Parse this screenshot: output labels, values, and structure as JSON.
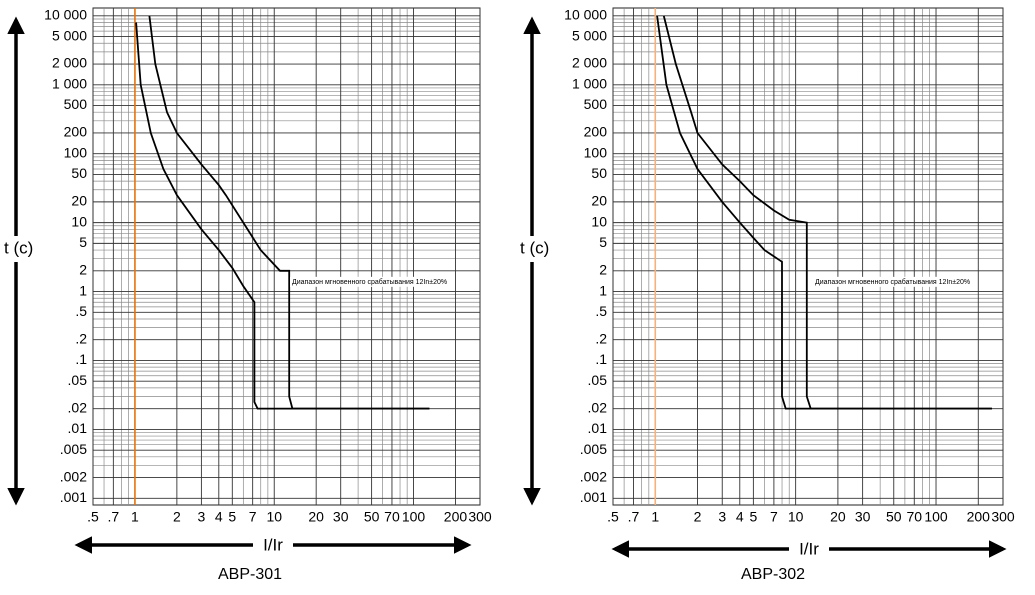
{
  "chart_data": [
    {
      "type": "line",
      "title": "АВР-301",
      "xlabel": "I/Ir",
      "ylabel": "t (c)",
      "annotation": "Диапазон мгновенного срабатывания 12In±20%",
      "xscale": "log",
      "yscale": "log",
      "grid": true,
      "xlim": [
        0.5,
        300
      ],
      "ylim": [
        0.0008,
        13000
      ],
      "xticks": [
        {
          "value": 0.5,
          "label": ".5"
        },
        {
          "value": 0.7,
          "label": ".7"
        },
        1,
        2,
        3,
        4,
        5,
        7,
        10,
        20,
        30,
        50,
        70,
        100,
        200,
        300
      ],
      "yticks": [
        {
          "value": 10000,
          "label": "10 000"
        },
        {
          "value": 5000,
          "label": "5 000"
        },
        {
          "value": 2000,
          "label": "2 000"
        },
        {
          "value": 1000,
          "label": "1 000"
        },
        500,
        200,
        100,
        50,
        20,
        10,
        5,
        2,
        1,
        {
          "value": 0.5,
          "label": ".5"
        },
        {
          "value": 0.2,
          "label": ".2"
        },
        {
          "value": 0.1,
          "label": ".1"
        },
        {
          "value": 0.05,
          "label": ".05"
        },
        {
          "value": 0.02,
          "label": ".02"
        },
        {
          "value": 0.01,
          "label": ".01"
        },
        {
          "value": 0.005,
          "label": ".005"
        },
        {
          "value": 0.002,
          "label": ".002"
        },
        {
          "value": 0.001,
          "label": ".001"
        }
      ],
      "xminor": [
        0.6,
        0.8,
        0.9,
        6,
        8,
        9,
        40,
        60,
        80,
        90
      ],
      "yminor": [
        0.003,
        0.004,
        0.006,
        0.007,
        0.008,
        0.009,
        0.03,
        0.04,
        0.06,
        0.07,
        0.08,
        0.09,
        0.3,
        0.4,
        0.6,
        0.7,
        0.8,
        0.9,
        3,
        4,
        6,
        7,
        8,
        9,
        30,
        40,
        60,
        70,
        80,
        90,
        300,
        400,
        600,
        700,
        800,
        900,
        3000,
        4000,
        6000,
        7000,
        8000,
        9000
      ],
      "vline": 1,
      "vline_color": "#e8730c",
      "series": [
        {
          "color": "#000000",
          "x": [
            1.02,
            1.1,
            1.3,
            1.6,
            2,
            3,
            4,
            5,
            6,
            7.2,
            7.2,
            7.6,
            10,
            130
          ],
          "values": [
            8000,
            1000,
            200,
            60,
            25,
            8,
            4,
            2.2,
            1.2,
            0.7,
            0.025,
            0.02,
            0.02,
            0.02
          ]
        },
        {
          "color": "#000000",
          "x": [
            1.27,
            1.4,
            1.7,
            2,
            3,
            4,
            4.5,
            6,
            8,
            11,
            12.8,
            12.8,
            13.5,
            130
          ],
          "values": [
            10000,
            2000,
            400,
            200,
            70,
            35,
            25,
            10,
            4,
            2,
            2,
            0.03,
            0.02,
            0.02
          ]
        }
      ]
    },
    {
      "type": "line",
      "title": "АВР-302",
      "xlabel": "I/Ir",
      "ylabel": "t (c)",
      "annotation": "Диапазон мгновенного срабатывания 12In±20%",
      "xscale": "log",
      "yscale": "log",
      "grid": true,
      "xlim": [
        0.5,
        300
      ],
      "ylim": [
        0.0008,
        13000
      ],
      "xticks": [
        {
          "value": 0.5,
          "label": ".5"
        },
        {
          "value": 0.7,
          "label": ".7"
        },
        1,
        2,
        3,
        4,
        5,
        7,
        10,
        20,
        30,
        50,
        70,
        100,
        200,
        300
      ],
      "yticks": [
        {
          "value": 10000,
          "label": "10 000"
        },
        {
          "value": 5000,
          "label": "5 000"
        },
        {
          "value": 2000,
          "label": "2 000"
        },
        {
          "value": 1000,
          "label": "1 000"
        },
        500,
        200,
        100,
        50,
        20,
        10,
        5,
        2,
        1,
        {
          "value": 0.5,
          "label": ".5"
        },
        {
          "value": 0.2,
          "label": ".2"
        },
        {
          "value": 0.1,
          "label": ".1"
        },
        {
          "value": 0.05,
          "label": ".05"
        },
        {
          "value": 0.02,
          "label": ".02"
        },
        {
          "value": 0.01,
          "label": ".01"
        },
        {
          "value": 0.005,
          "label": ".005"
        },
        {
          "value": 0.002,
          "label": ".002"
        },
        {
          "value": 0.001,
          "label": ".001"
        }
      ],
      "xminor": [
        0.6,
        0.8,
        0.9,
        6,
        8,
        9,
        40,
        60,
        80,
        90
      ],
      "yminor": [
        0.003,
        0.004,
        0.006,
        0.007,
        0.008,
        0.009,
        0.03,
        0.04,
        0.06,
        0.07,
        0.08,
        0.09,
        0.3,
        0.4,
        0.6,
        0.7,
        0.8,
        0.9,
        3,
        4,
        6,
        7,
        8,
        9,
        30,
        40,
        60,
        70,
        80,
        90,
        300,
        400,
        600,
        700,
        800,
        900,
        3000,
        4000,
        6000,
        7000,
        8000,
        9000
      ],
      "vline": 1,
      "vline_color": "#f5b27a",
      "series": [
        {
          "color": "#000000",
          "x": [
            1.03,
            1.2,
            1.5,
            2,
            3,
            4,
            5,
            6,
            8,
            8,
            8.5,
            20,
            250
          ],
          "values": [
            10000,
            1000,
            200,
            60,
            20,
            10,
            6,
            4,
            2.7,
            0.03,
            0.02,
            0.02,
            0.02
          ]
        },
        {
          "color": "#000000",
          "x": [
            1.15,
            1.4,
            1.8,
            2,
            3,
            4,
            5,
            7,
            9,
            12,
            12,
            12.8,
            250
          ],
          "values": [
            10000,
            2000,
            400,
            200,
            70,
            40,
            25,
            15,
            11,
            10,
            0.03,
            0.02,
            0.02
          ]
        }
      ]
    }
  ]
}
